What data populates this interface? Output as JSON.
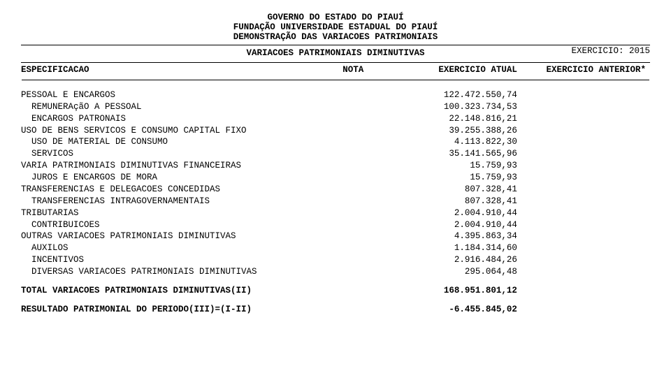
{
  "header": {
    "line1": "GOVERNO DO ESTADO DO PIAUÍ",
    "line2": "FUNDAÇÃO UNIVERSIDADE ESTADUAL DO PIAUÍ",
    "line3": "DEMONSTRAÇÃO DAS VARIACOES PATRIMONIAIS",
    "exercicio": "EXERCICIO: 2015"
  },
  "section_title": "VARIACOES PATRIMONIAIS DIMINUTIVAS",
  "columns": {
    "spec": "ESPECIFICACAO",
    "nota": "NOTA",
    "atual": "EXERCICIO ATUAL",
    "anterior": "EXERCICIO ANTERIOR*"
  },
  "rows": [
    {
      "indent": 0,
      "label": "PESSOAL E ENCARGOS",
      "atual": "122.472.550,74",
      "anterior": ""
    },
    {
      "indent": 1,
      "label": "REMUNERAçãO A PESSOAL",
      "atual": "100.323.734,53",
      "anterior": ""
    },
    {
      "indent": 1,
      "label": "ENCARGOS PATRONAIS",
      "atual": "22.148.816,21",
      "anterior": ""
    },
    {
      "indent": 0,
      "label": "USO DE BENS SERVICOS E CONSUMO CAPITAL FIXO",
      "atual": "39.255.388,26",
      "anterior": ""
    },
    {
      "indent": 1,
      "label": "USO DE MATERIAL DE CONSUMO",
      "atual": "4.113.822,30",
      "anterior": ""
    },
    {
      "indent": 1,
      "label": "SERVICOS",
      "atual": "35.141.565,96",
      "anterior": ""
    },
    {
      "indent": 0,
      "label": "VARIA PATRIMONIAIS DIMINUTIVAS FINANCEIRAS",
      "atual": "15.759,93",
      "anterior": ""
    },
    {
      "indent": 1,
      "label": "JUROS E ENCARGOS DE MORA",
      "atual": "15.759,93",
      "anterior": ""
    },
    {
      "indent": 0,
      "label": "TRANSFERENCIAS E DELEGACOES CONCEDIDAS",
      "atual": "807.328,41",
      "anterior": ""
    },
    {
      "indent": 1,
      "label": "TRANSFERENCIAS INTRAGOVERNAMENTAIS",
      "atual": "807.328,41",
      "anterior": ""
    },
    {
      "indent": 0,
      "label": "TRIBUTARIAS",
      "atual": "2.004.910,44",
      "anterior": ""
    },
    {
      "indent": 1,
      "label": "CONTRIBUICOES",
      "atual": "2.004.910,44",
      "anterior": ""
    },
    {
      "indent": 0,
      "label": "OUTRAS VARIACOES PATRIMONIAIS DIMINUTIVAS",
      "atual": "4.395.863,34",
      "anterior": ""
    },
    {
      "indent": 1,
      "label": "AUXILOS",
      "atual": "1.184.314,60",
      "anterior": ""
    },
    {
      "indent": 1,
      "label": "INCENTIVOS",
      "atual": "2.916.484,26",
      "anterior": ""
    },
    {
      "indent": 1,
      "label": "DIVERSAS VARIACOES PATRIMONIAIS DIMINUTIVAS",
      "atual": "295.064,48",
      "anterior": ""
    }
  ],
  "totals": [
    {
      "label": "TOTAL VARIACOES PATRIMONIAIS DIMINUTIVAS(II)",
      "atual": "168.951.801,12",
      "anterior": ""
    },
    {
      "label": "RESULTADO PATRIMONIAL DO PERIODO(III)=(I-II)",
      "atual": "-6.455.845,02",
      "anterior": ""
    }
  ],
  "style": {
    "font_family": "Courier New",
    "font_size_pt": 10,
    "text_color": "#000000",
    "background_color": "#ffffff",
    "rule_color": "#000000",
    "indent_spaces_per_level": 2
  }
}
